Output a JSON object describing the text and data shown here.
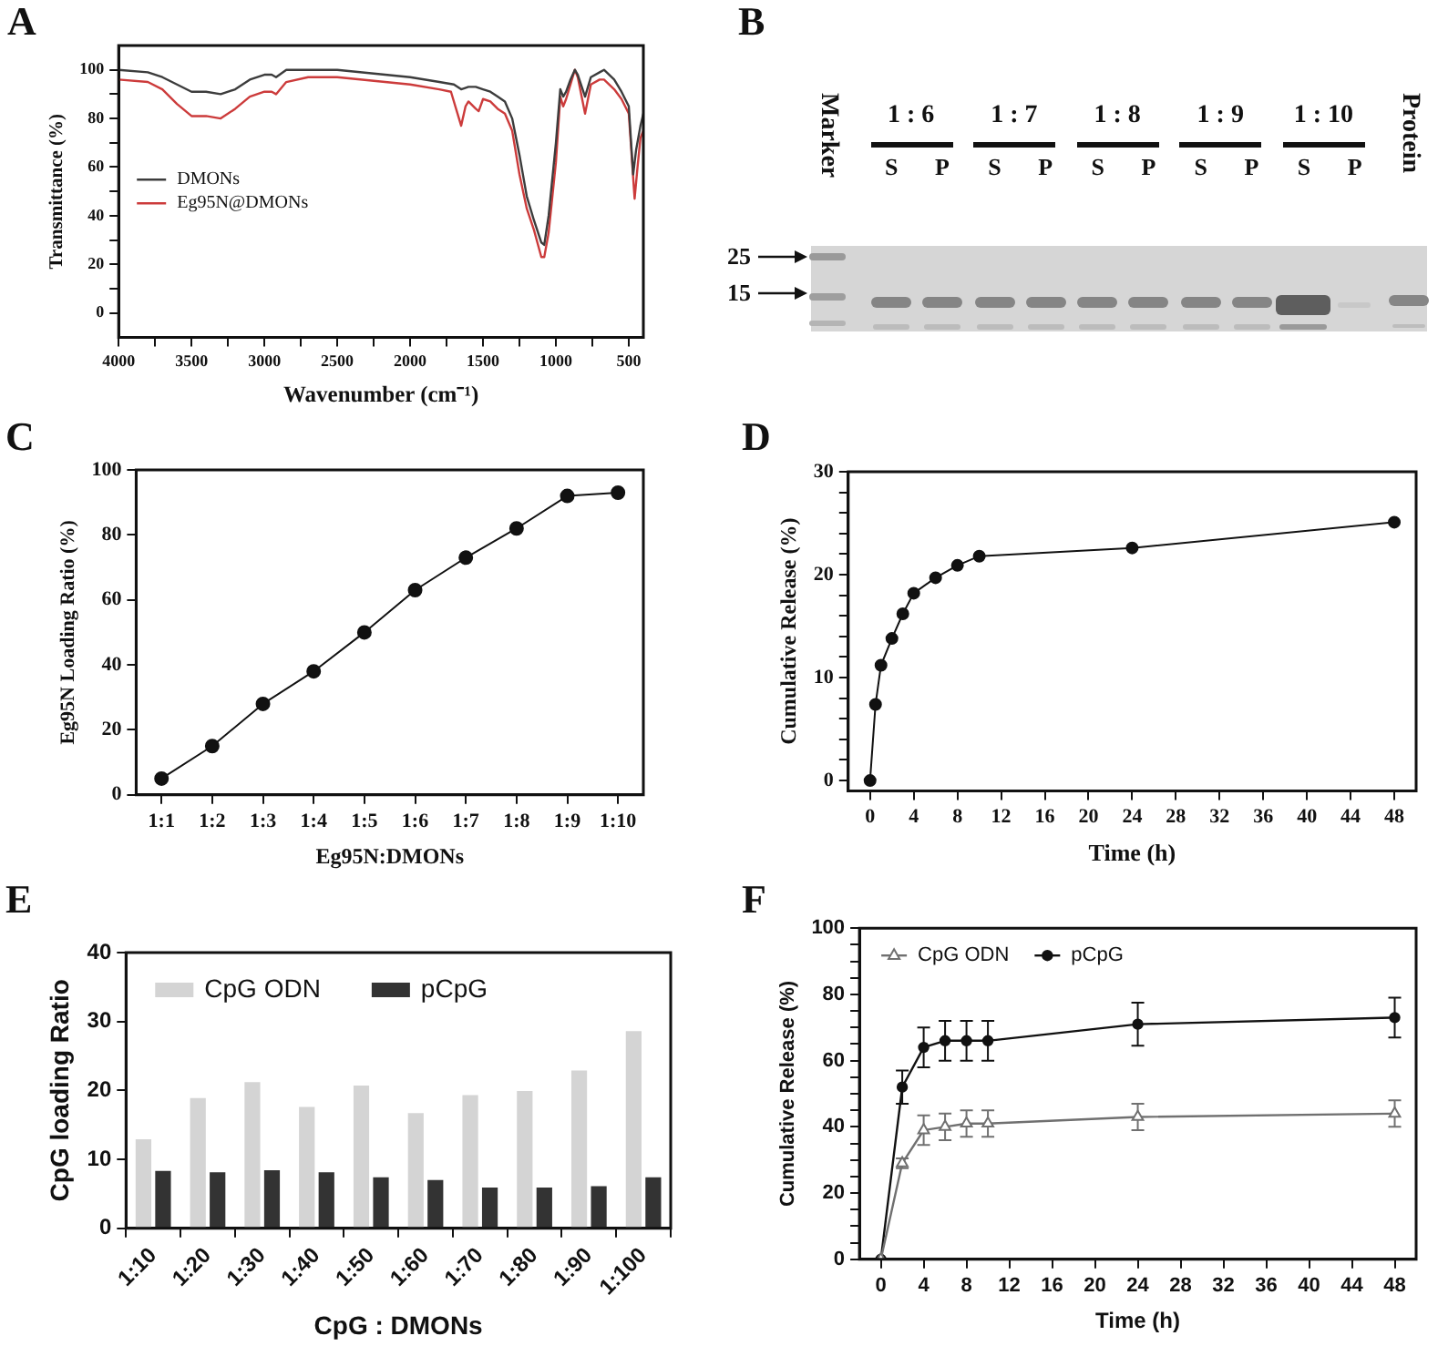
{
  "chart_data": [
    {
      "type": "line",
      "title": "A",
      "xlabel": "Wavenumber (cm⁻¹)",
      "ylabel": "Transmittance (%)",
      "xlim": [
        4000,
        400
      ],
      "xticks": [
        4000,
        {
          "value": 3750,
          "label": null
        },
        3500,
        {
          "value": 3250,
          "label": null
        },
        3000,
        {
          "value": 2750,
          "label": null
        },
        2500,
        {
          "value": 2250,
          "label": null
        },
        2000,
        {
          "value": 1750,
          "label": null
        },
        1500,
        {
          "value": 1250,
          "label": null
        },
        1000,
        {
          "value": 750,
          "label": null
        },
        500
      ],
      "ylim": [
        -10,
        110
      ],
      "yticks": [
        0,
        {
          "value": 10,
          "label": null
        },
        20,
        {
          "value": 30,
          "label": null
        },
        40,
        {
          "value": 50,
          "label": null
        },
        60,
        {
          "value": 70,
          "label": null
        },
        80,
        {
          "value": 90,
          "label": null
        },
        100
      ],
      "legend": "left",
      "series": [
        {
          "name": "DMONs",
          "color": "#3c3c3c",
          "x": [
            4000,
            3800,
            3700,
            3600,
            3500,
            3400,
            3300,
            3200,
            3100,
            3000,
            2950,
            2920,
            2850,
            2700,
            2500,
            2000,
            1800,
            1700,
            1650,
            1600,
            1550,
            1500,
            1450,
            1400,
            1350,
            1300,
            1250,
            1200,
            1150,
            1100,
            1080,
            1050,
            1000,
            970,
            950,
            930,
            900,
            870,
            850,
            800,
            760,
            700,
            670,
            600,
            550,
            500,
            470,
            450,
            420,
            400
          ],
          "values": [
            100,
            99,
            97,
            94,
            91,
            91,
            90,
            92,
            96,
            98,
            98,
            97,
            100,
            100,
            100,
            97,
            95,
            94,
            92,
            93,
            93,
            92,
            91,
            89,
            87,
            80,
            65,
            48,
            38,
            29,
            28,
            40,
            70,
            92,
            89,
            91,
            96,
            100,
            98,
            89,
            97,
            99,
            100,
            96,
            91,
            85,
            57,
            67,
            77,
            82
          ]
        },
        {
          "name": "Eg95N@DMONs",
          "color": "#cc3b3b",
          "x": [
            4000,
            3800,
            3700,
            3600,
            3500,
            3400,
            3300,
            3200,
            3100,
            3000,
            2950,
            2920,
            2850,
            2700,
            2500,
            2000,
            1800,
            1720,
            1680,
            1650,
            1620,
            1600,
            1550,
            1530,
            1500,
            1450,
            1400,
            1350,
            1300,
            1250,
            1200,
            1150,
            1100,
            1080,
            1050,
            1000,
            970,
            950,
            930,
            900,
            870,
            850,
            800,
            760,
            700,
            670,
            600,
            550,
            500,
            460,
            440,
            420,
            400
          ],
          "values": [
            96,
            95,
            92,
            86,
            81,
            81,
            80,
            84,
            89,
            91,
            91,
            90,
            95,
            97,
            97,
            94,
            92,
            91,
            83,
            77,
            85,
            87,
            84,
            83,
            88,
            87,
            84,
            82,
            75,
            57,
            43,
            34,
            23,
            23,
            33,
            62,
            89,
            85,
            88,
            94,
            100,
            97,
            82,
            94,
            96,
            96,
            92,
            88,
            82,
            47,
            60,
            72,
            75
          ]
        }
      ]
    },
    {
      "type": "other",
      "title": "B",
      "annotations": [
        "Marker",
        "1 : 6",
        "S",
        "P",
        "1 : 7",
        "S",
        "P",
        "1 : 8",
        "S",
        "P",
        "1 : 9",
        "S",
        "P",
        "1 : 10",
        "S",
        "P",
        "Protein",
        "25",
        "15"
      ]
    },
    {
      "type": "line",
      "title": "C",
      "xlabel": "Eg95N:DMONs",
      "ylabel": "Eg95N Loading Ratio (%)",
      "categories": [
        "1:1",
        "1:2",
        "1:3",
        "1:4",
        "1:5",
        "1:6",
        "1:7",
        "1:8",
        "1:9",
        "1:10"
      ],
      "ylim": [
        0,
        100
      ],
      "yticks": [
        0,
        20,
        40,
        60,
        80,
        100
      ],
      "marker": "circle",
      "series": [
        {
          "color": "#111111",
          "values": [
            5,
            15,
            28,
            38,
            50,
            63,
            73,
            82,
            92,
            93
          ]
        }
      ]
    },
    {
      "type": "line",
      "title": "D",
      "xlabel": "Time (h)",
      "ylabel": "Cumulative Release (%)",
      "xlim": [
        -2,
        50
      ],
      "xticks": [
        0,
        4,
        8,
        12,
        16,
        20,
        24,
        28,
        32,
        36,
        40,
        44,
        48
      ],
      "ylim": [
        -1,
        30
      ],
      "yticks": [
        0,
        {
          "value": 2,
          "label": null
        },
        {
          "value": 4,
          "label": null
        },
        {
          "value": 6,
          "label": null
        },
        {
          "value": 8,
          "label": null
        },
        10,
        {
          "value": 12,
          "label": null
        },
        {
          "value": 14,
          "label": null
        },
        {
          "value": 16,
          "label": null
        },
        {
          "value": 18,
          "label": null
        },
        20,
        {
          "value": 22,
          "label": null
        },
        {
          "value": 24,
          "label": null
        },
        {
          "value": 26,
          "label": null
        },
        {
          "value": 28,
          "label": null
        },
        30
      ],
      "marker": "circle",
      "series": [
        {
          "color": "#111111",
          "x": [
            0,
            0.5,
            1,
            2,
            3,
            4,
            6,
            8,
            10,
            24,
            48
          ],
          "values": [
            0,
            7.4,
            11.2,
            13.8,
            16.2,
            18.2,
            19.7,
            20.9,
            21.8,
            22.6,
            25.1
          ]
        }
      ]
    },
    {
      "type": "bar",
      "title": "E",
      "xlabel": "CpG : DMONs",
      "ylabel": "CpG loading Ratio",
      "categories": [
        "1:10",
        "1:20",
        "1:30",
        "1:40",
        "1:50",
        "1:60",
        "1:70",
        "1:80",
        "1:90",
        "1:100"
      ],
      "ylim": [
        0,
        40
      ],
      "yticks": [
        0,
        10,
        20,
        30,
        40
      ],
      "legend": "top left",
      "series": [
        {
          "name": "CpG ODN",
          "color": "#d4d4d4",
          "values": [
            12.9,
            18.9,
            21.2,
            17.6,
            20.7,
            16.7,
            19.3,
            19.9,
            22.9,
            28.6
          ]
        },
        {
          "name": "pCpG",
          "color": "#333333",
          "values": [
            8.3,
            8.1,
            8.4,
            8.1,
            7.4,
            7.0,
            5.9,
            5.9,
            6.1,
            7.4
          ]
        }
      ]
    },
    {
      "type": "line",
      "title": "F",
      "xlabel": "Time (h)",
      "ylabel": "Cumulative Release (%)",
      "xlim": [
        -2,
        50
      ],
      "xticks": [
        0,
        4,
        8,
        12,
        16,
        20,
        24,
        28,
        32,
        36,
        40,
        44,
        48
      ],
      "ylim": [
        0,
        100
      ],
      "yticks": [
        0,
        {
          "value": 5,
          "label": null
        },
        {
          "value": 10,
          "label": null
        },
        {
          "value": 15,
          "label": null
        },
        20,
        {
          "value": 25,
          "label": null
        },
        {
          "value": 30,
          "label": null
        },
        {
          "value": 35,
          "label": null
        },
        40,
        {
          "value": 45,
          "label": null
        },
        {
          "value": 50,
          "label": null
        },
        {
          "value": 55,
          "label": null
        },
        60,
        {
          "value": 65,
          "label": null
        },
        {
          "value": 70,
          "label": null
        },
        {
          "value": 75,
          "label": null
        },
        80,
        {
          "value": 85,
          "label": null
        },
        {
          "value": 90,
          "label": null
        },
        {
          "value": 95,
          "label": null
        },
        100
      ],
      "legend": "top left",
      "series": [
        {
          "name": "CpG ODN",
          "color": "#707070",
          "marker": "triangle",
          "x": [
            0,
            2,
            4,
            6,
            8,
            10,
            24,
            48
          ],
          "values": [
            0,
            29,
            39,
            40,
            41,
            41,
            43,
            44
          ],
          "errors": [
            null,
            1.5,
            4.5,
            4,
            4,
            4,
            4,
            4
          ]
        },
        {
          "name": "pCpG",
          "color": "#111111",
          "marker": "circle",
          "x": [
            0,
            2,
            4,
            6,
            8,
            10,
            24,
            48
          ],
          "values": [
            0,
            52,
            64,
            66,
            66,
            66,
            71,
            73
          ],
          "errors": [
            null,
            5,
            6,
            6,
            6,
            6,
            6.5,
            6
          ]
        }
      ]
    }
  ]
}
